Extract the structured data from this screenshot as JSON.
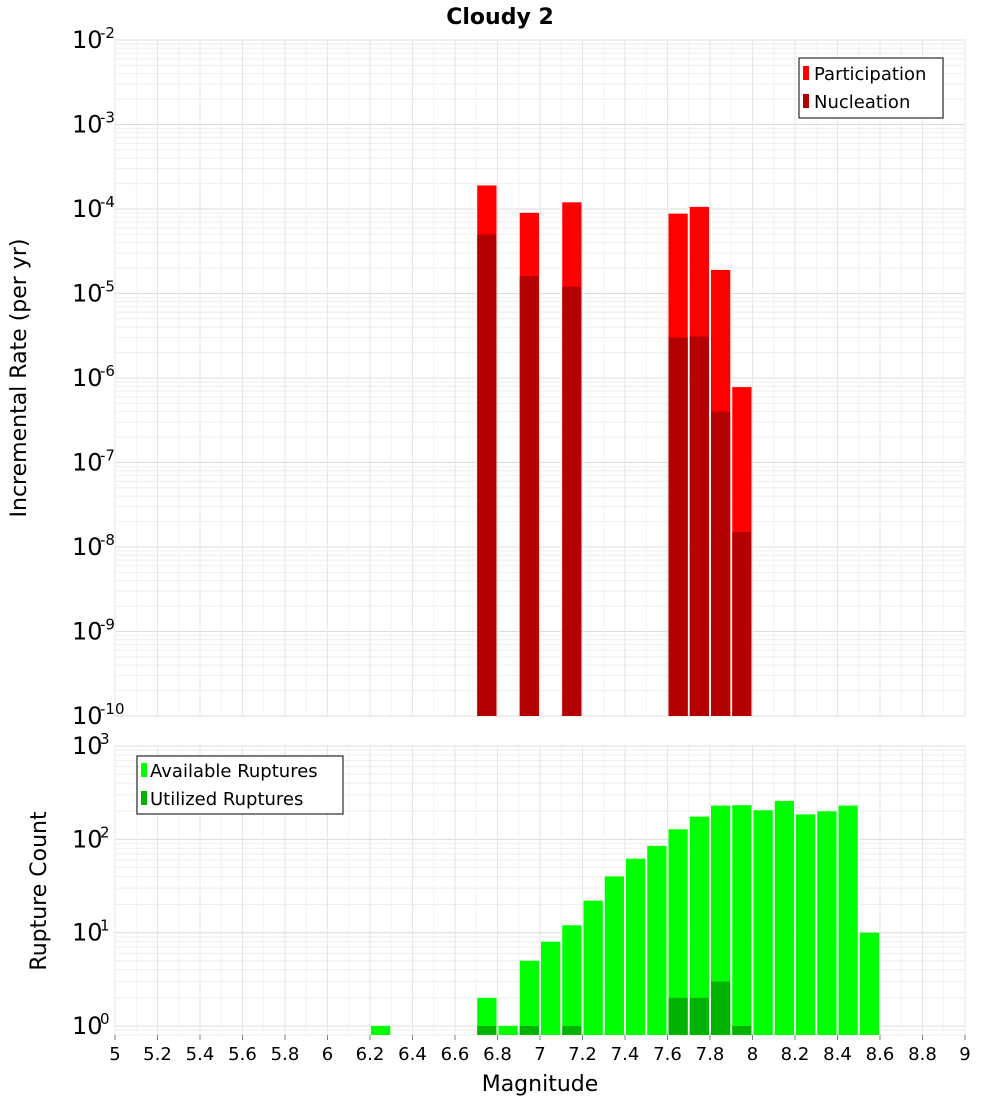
{
  "chart_data": [
    {
      "type": "bar",
      "title": "Cloudy 2",
      "ylabel": "Incremental Rate (per yr)",
      "yscale": "log",
      "ylim": [
        1e-10,
        0.01
      ],
      "xlim": [
        5,
        9
      ],
      "bin_width": 0.1,
      "ytick_exponents": [
        "-10",
        "-9",
        "-8",
        "-7",
        "-6",
        "-5",
        "-4",
        "-3",
        "-2"
      ],
      "grid": true,
      "legend_position": "top-right",
      "series": [
        {
          "name": "Participation",
          "color": "#ff0000",
          "x": [
            6.75,
            6.95,
            7.15,
            7.65,
            7.75,
            7.85,
            7.95
          ],
          "values": [
            0.00019,
            9e-05,
            0.00012,
            8.8e-05,
            0.000106,
            1.9e-05,
            7.8e-07
          ]
        },
        {
          "name": "Nucleation",
          "color": "#b30000",
          "x": [
            6.75,
            6.95,
            7.15,
            7.65,
            7.75,
            7.85,
            7.95
          ],
          "values": [
            5e-05,
            1.6e-05,
            1.2e-05,
            3e-06,
            3.1e-06,
            4e-07,
            1.5e-08
          ]
        }
      ]
    },
    {
      "type": "bar",
      "xlabel": "Magnitude",
      "ylabel": "Rupture Count",
      "yscale": "log",
      "ylim": [
        0.8,
        1000
      ],
      "xlim": [
        5,
        9
      ],
      "bin_width": 0.1,
      "ytick_exponents": [
        "0",
        "1",
        "2",
        "3"
      ],
      "xticks": [
        "5",
        "5.2",
        "5.4",
        "5.6",
        "5.8",
        "6",
        "6.2",
        "6.4",
        "6.6",
        "6.8",
        "7",
        "7.2",
        "7.4",
        "7.6",
        "7.8",
        "8",
        "8.2",
        "8.4",
        "8.6",
        "8.8",
        "9"
      ],
      "grid": true,
      "legend_position": "top-left",
      "series": [
        {
          "name": "Available Ruptures",
          "color": "#00ff00",
          "x": [
            6.25,
            6.75,
            6.85,
            6.95,
            7.05,
            7.15,
            7.25,
            7.35,
            7.45,
            7.55,
            7.65,
            7.75,
            7.85,
            7.95,
            8.05,
            8.15,
            8.25,
            8.35,
            8.45,
            8.55
          ],
          "values": [
            1,
            2,
            1,
            5,
            8,
            12,
            22,
            40,
            62,
            85,
            128,
            175,
            230,
            232,
            205,
            258,
            185,
            200,
            230,
            10
          ]
        },
        {
          "name": "Utilized Ruptures",
          "color": "#00b300",
          "x": [
            6.75,
            6.95,
            7.15,
            7.65,
            7.75,
            7.85,
            7.95
          ],
          "values": [
            1,
            1,
            1,
            2,
            2,
            3,
            1
          ]
        }
      ]
    }
  ]
}
